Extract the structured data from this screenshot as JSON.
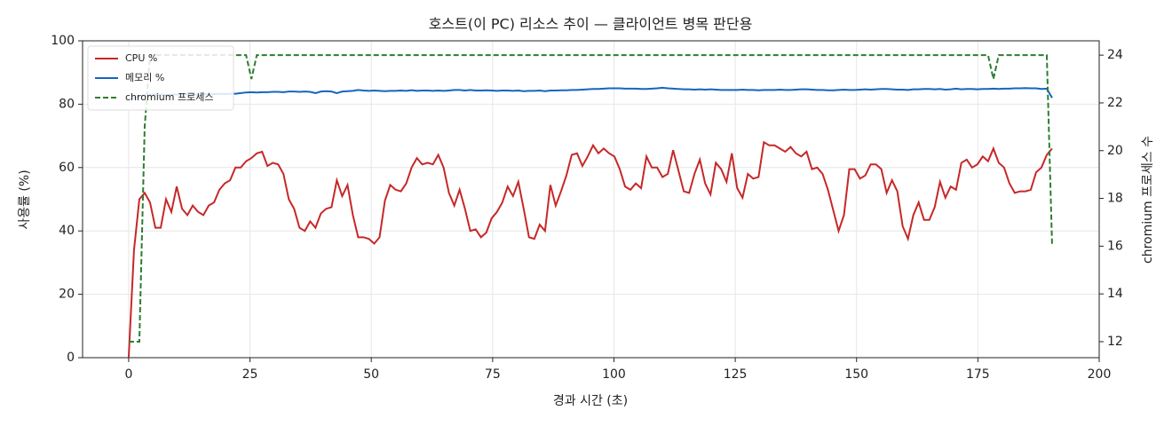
{
  "chart_data": {
    "type": "line",
    "title": "호스트(이 PC) 리소스 추이 — 클라이언트 병목 판단용",
    "x_label": "경과 시간 (초)",
    "y_label": "사용률 (%)",
    "y2_label": "chromium 프로세스 수",
    "x": [
      0,
      1.1,
      2.2,
      3.3,
      4.4,
      5.5,
      6.6,
      7.7,
      8.8,
      9.9,
      11,
      12.1,
      13.2,
      14.3,
      15.4,
      16.5,
      17.6,
      18.7,
      19.8,
      20.9,
      22,
      23.1,
      24.2,
      25.3,
      26.4,
      27.5,
      28.6,
      29.7,
      30.8,
      31.9,
      33,
      34.1,
      35.2,
      36.3,
      37.4,
      38.5,
      39.6,
      40.7,
      41.8,
      42.9,
      44,
      45.1,
      46.2,
      47.3,
      48.4,
      49.5,
      50.6,
      51.7,
      52.8,
      53.9,
      55,
      56.1,
      57.2,
      58.3,
      59.4,
      60.5,
      61.6,
      62.7,
      63.8,
      64.9,
      66,
      67.1,
      68.2,
      69.3,
      70.4,
      71.5,
      72.6,
      73.7,
      74.8,
      75.9,
      77,
      78.1,
      79.2,
      80.3,
      81.4,
      82.5,
      83.6,
      84.7,
      85.8,
      86.9,
      88,
      89.1,
      90.2,
      91.3,
      92.4,
      93.5,
      94.6,
      95.7,
      96.8,
      97.9,
      99,
      100.1,
      101.2,
      102.3,
      103.4,
      104.5,
      105.6,
      106.7,
      107.8,
      108.9,
      110,
      111.1,
      112.2,
      113.3,
      114.4,
      115.5,
      116.6,
      117.7,
      118.8,
      119.9,
      121,
      122.1,
      123.2,
      124.3,
      125.4,
      126.5,
      127.6,
      128.7,
      129.8,
      130.9,
      132,
      133.1,
      134.2,
      135.3,
      136.4,
      137.5,
      138.6,
      139.7,
      140.8,
      141.9,
      143,
      144.1,
      145.2,
      146.3,
      147.4,
      148.5,
      149.6,
      150.7,
      151.8,
      152.9,
      154,
      155.1,
      156.2,
      157.3,
      158.4,
      159.5,
      160.6,
      161.7,
      162.8,
      163.9,
      165,
      166.1,
      167.2,
      168.3,
      169.4,
      170.5,
      171.6,
      172.7,
      173.8,
      174.9,
      176,
      177.1,
      178.2,
      179.3,
      180.4,
      181.5,
      182.6,
      183.7,
      184.8,
      185.9,
      187,
      188.1,
      189.2,
      190.3
    ],
    "series": [
      {
        "name": "CPU %",
        "color": "#c62828",
        "values": [
          0,
          34,
          50,
          52,
          49,
          41,
          41,
          50,
          46,
          54,
          47,
          45,
          48,
          46,
          45,
          48,
          49,
          53,
          55,
          56,
          60,
          60,
          62,
          63,
          64.5,
          65,
          60.5,
          61.5,
          61,
          58,
          50,
          47,
          41,
          40,
          43,
          41,
          45.5,
          47,
          47.5,
          56,
          51,
          54.5,
          45,
          38,
          38,
          37.5,
          36,
          38,
          49.5,
          54.5,
          53,
          52.5,
          55,
          60,
          63,
          61,
          61.5,
          61,
          64,
          60,
          52,
          48,
          53,
          47,
          40,
          40.5,
          38,
          39.5,
          44,
          46,
          49,
          54,
          51,
          55.5,
          47,
          38,
          37.5,
          42,
          40,
          54.5,
          48,
          52.5,
          57.5,
          64,
          64.5,
          60.5,
          63.5,
          67,
          64.5,
          66,
          64.5,
          63.5,
          59.5,
          54,
          53,
          55,
          53.5,
          63.5,
          60,
          60,
          57,
          58,
          65.5,
          59,
          52.5,
          52,
          58,
          62.5,
          55,
          51.5,
          61.5,
          59.5,
          55.5,
          64.5,
          53.5,
          50.5,
          58,
          56.5,
          57,
          68,
          67,
          67,
          66,
          65,
          66.5,
          64.5,
          63.5,
          65,
          59.5,
          60,
          58,
          53,
          46.5,
          40,
          45,
          59.5,
          59.5,
          56.5,
          57.5,
          61,
          61,
          59.5,
          52,
          56,
          52.5,
          41.5,
          37.5,
          45,
          49,
          43.5,
          43.5,
          47.5,
          55.5,
          50.5,
          54,
          53,
          61.5,
          62.5,
          60,
          61,
          63.5,
          62,
          66,
          61.5,
          60,
          55,
          52,
          52.5,
          52.5,
          53,
          58.5,
          60,
          64,
          66
        ]
      },
      {
        "name": "메모리 %",
        "color": "#1565c0",
        "values": [
          81.5,
          82,
          82.5,
          82.8,
          83,
          83,
          83,
          83,
          83,
          83.1,
          83,
          83.2,
          83.1,
          83,
          83.2,
          83.1,
          83.2,
          83.3,
          83.2,
          83.3,
          83.3,
          83.5,
          83.7,
          83.8,
          83.7,
          83.8,
          83.8,
          83.9,
          83.9,
          83.8,
          84,
          84,
          83.9,
          84,
          83.9,
          83.5,
          84,
          84.1,
          84,
          83.5,
          84,
          84.1,
          84.2,
          84.5,
          84.3,
          84.2,
          84.3,
          84.2,
          84.1,
          84.2,
          84.2,
          84.3,
          84.2,
          84.4,
          84.2,
          84.3,
          84.3,
          84.2,
          84.3,
          84.2,
          84.3,
          84.5,
          84.5,
          84.3,
          84.5,
          84.3,
          84.3,
          84.4,
          84.3,
          84.2,
          84.3,
          84.3,
          84.2,
          84.3,
          84.1,
          84.2,
          84.2,
          84.3,
          84.1,
          84.3,
          84.3,
          84.4,
          84.4,
          84.5,
          84.5,
          84.6,
          84.7,
          84.8,
          84.8,
          84.9,
          85,
          85,
          85,
          84.9,
          84.9,
          84.9,
          84.8,
          84.8,
          84.9,
          85,
          85.2,
          85,
          84.9,
          84.8,
          84.7,
          84.7,
          84.6,
          84.7,
          84.6,
          84.7,
          84.6,
          84.5,
          84.5,
          84.5,
          84.5,
          84.6,
          84.5,
          84.5,
          84.4,
          84.5,
          84.5,
          84.5,
          84.6,
          84.5,
          84.5,
          84.6,
          84.7,
          84.7,
          84.6,
          84.5,
          84.5,
          84.4,
          84.4,
          84.5,
          84.6,
          84.5,
          84.5,
          84.6,
          84.7,
          84.6,
          84.7,
          84.8,
          84.8,
          84.7,
          84.6,
          84.6,
          84.5,
          84.7,
          84.7,
          84.8,
          84.8,
          84.7,
          84.8,
          84.6,
          84.7,
          84.9,
          84.7,
          84.8,
          84.8,
          84.7,
          84.8,
          84.8,
          84.9,
          84.8,
          84.9,
          84.9,
          85,
          85,
          85.1,
          85,
          85,
          84.8,
          84.9,
          82
        ]
      },
      {
        "name": "chromium 프로세스",
        "color": "#2e7d32",
        "dashed": true,
        "axis": "y2",
        "values": [
          12,
          12,
          12,
          21,
          24,
          24,
          24,
          24,
          24,
          24,
          24,
          24,
          24,
          24,
          24,
          24,
          24,
          24,
          24,
          24,
          24,
          24,
          24,
          23,
          24,
          24,
          24,
          24,
          24,
          24,
          24,
          24,
          24,
          24,
          24,
          24,
          24,
          24,
          24,
          24,
          24,
          24,
          24,
          24,
          24,
          24,
          24,
          24,
          24,
          24,
          24,
          24,
          24,
          24,
          24,
          24,
          24,
          24,
          24,
          24,
          24,
          24,
          24,
          24,
          24,
          24,
          24,
          24,
          24,
          24,
          24,
          24,
          24,
          24,
          24,
          24,
          24,
          24,
          24,
          24,
          24,
          24,
          24,
          24,
          24,
          24,
          24,
          24,
          24,
          24,
          24,
          24,
          24,
          24,
          24,
          24,
          24,
          24,
          24,
          24,
          24,
          24,
          24,
          24,
          24,
          24,
          24,
          24,
          24,
          24,
          24,
          24,
          24,
          24,
          24,
          24,
          24,
          24,
          24,
          24,
          24,
          24,
          24,
          24,
          24,
          24,
          24,
          24,
          24,
          24,
          24,
          24,
          24,
          24,
          24,
          24,
          24,
          24,
          24,
          24,
          24,
          24,
          24,
          24,
          24,
          24,
          24,
          24,
          24,
          24,
          24,
          24,
          24,
          24,
          24,
          24,
          24,
          24,
          24,
          24,
          24,
          24,
          23,
          24,
          24,
          24,
          24,
          24,
          24,
          24,
          24,
          24,
          24,
          16
        ]
      }
    ],
    "xlim": [
      -9.5,
      200
    ],
    "xticks": [
      0,
      25,
      50,
      75,
      100,
      125,
      150,
      175,
      200
    ],
    "ylim": [
      0,
      100
    ],
    "yticks": [
      0,
      20,
      40,
      60,
      80,
      100
    ],
    "y2lim": [
      11.33,
      24.6
    ],
    "y2ticks": [
      12,
      14,
      16,
      18,
      20,
      22,
      24
    ],
    "grid": true,
    "legend": "upper-left"
  }
}
